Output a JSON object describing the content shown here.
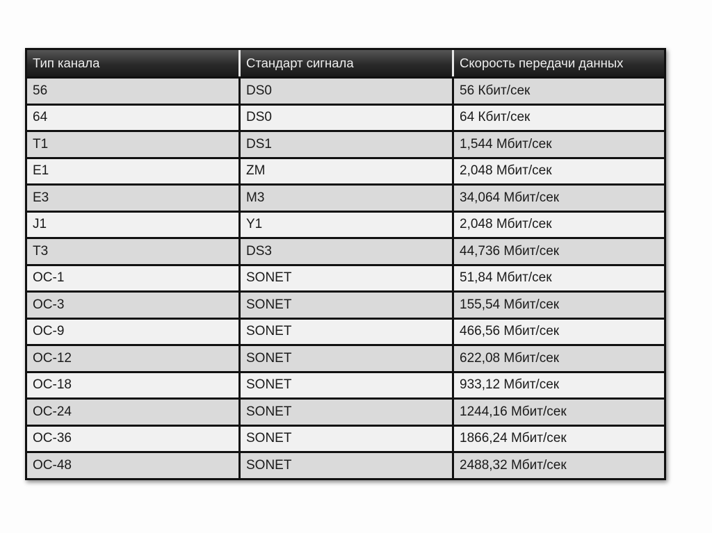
{
  "table": {
    "headers": [
      "Тип канала",
      "Стандарт сигнала",
      "Скорость передачи данных"
    ],
    "rows": [
      [
        "56",
        "DS0",
        "56 Кбит/сек"
      ],
      [
        "64",
        "DS0",
        "64 Кбит/сек"
      ],
      [
        "T1",
        "DS1",
        "1,544 Мбит/сек"
      ],
      [
        "E1",
        "ZM",
        "2,048 Мбит/сек"
      ],
      [
        "E3",
        "M3",
        "34,064 Мбит/сек"
      ],
      [
        "J1",
        "Y1",
        "2,048 Мбит/сек"
      ],
      [
        "T3",
        "DS3",
        "44,736 Мбит/сек"
      ],
      [
        "OC-1",
        "SONET",
        "51,84 Мбит/сек"
      ],
      [
        "OC-3",
        "SONET",
        "155,54 Мбит/сек"
      ],
      [
        "OC-9",
        "SONET",
        "466,56 Мбит/сек"
      ],
      [
        "OC-12",
        "SONET",
        "622,08 Мбит/сек"
      ],
      [
        "OC-18",
        "SONET",
        "933,12 Мбит/сек"
      ],
      [
        "OC-24",
        "SONET",
        "1244,16 Мбит/сек"
      ],
      [
        "OC-36",
        "SONET",
        "1866,24 Мбит/сек"
      ],
      [
        "OC-48",
        "SONET",
        "2488,32 Мбит/сек"
      ]
    ]
  },
  "colors": {
    "header_bg": "#2a2a2a",
    "row_odd": "#dadada",
    "row_even": "#f1f1f1",
    "border": "#111111"
  }
}
